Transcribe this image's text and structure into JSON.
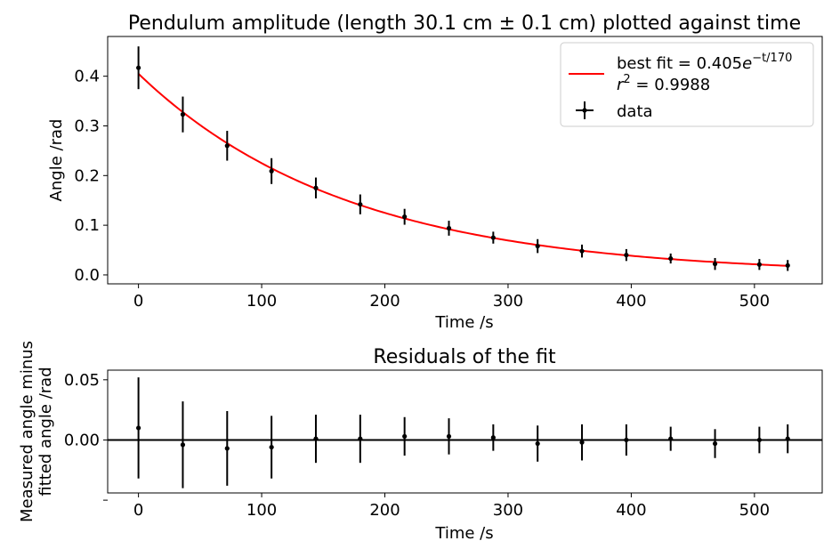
{
  "colors": {
    "fit": "#ff0000",
    "data": "#000000",
    "axes": "#000000",
    "background": "#ffffff",
    "legend_border": "#cccccc"
  },
  "chart_data": [
    {
      "type": "scatter",
      "title": "Pendulum amplitude (length 30.1 cm ± 0.1 cm) plotted against time",
      "xlabel": "Time /s",
      "ylabel": "Angle /rad",
      "xlim": [
        -25,
        555
      ],
      "ylim": [
        -0.018,
        0.48
      ],
      "xticks": [
        0,
        100,
        200,
        300,
        400,
        500
      ],
      "yticks": [
        0.0,
        0.1,
        0.2,
        0.3,
        0.4
      ],
      "grid": false,
      "legend_position": "top-right",
      "legend": {
        "fit_label_prefix": "best fit = 0.405",
        "fit_label_base": "e",
        "fit_label_exp": "−t/170",
        "r2_label": "r",
        "r2_exp": "2",
        "r2_value": " = 0.9988",
        "data_label": "data"
      },
      "series": [
        {
          "kind": "errorbar",
          "x": [
            0,
            36,
            72,
            108,
            144,
            180,
            216,
            252,
            288,
            324,
            360,
            396,
            432,
            468,
            504,
            527
          ],
          "y": [
            0.417,
            0.323,
            0.26,
            0.209,
            0.175,
            0.142,
            0.117,
            0.094,
            0.075,
            0.058,
            0.048,
            0.04,
            0.033,
            0.022,
            0.021,
            0.019
          ],
          "yerr": [
            0.043,
            0.036,
            0.03,
            0.026,
            0.021,
            0.02,
            0.016,
            0.015,
            0.012,
            0.014,
            0.013,
            0.012,
            0.01,
            0.012,
            0.011,
            0.011
          ]
        },
        {
          "kind": "fit",
          "amplitude": 0.405,
          "tau": 170,
          "x_range": [
            0,
            527
          ]
        }
      ]
    },
    {
      "type": "scatter",
      "title": "Residuals of the fit",
      "xlabel": "Time /s",
      "ylabel_line1": "Measured angle minus",
      "ylabel_line2": "fitted angle /rad",
      "xlim": [
        -25,
        555
      ],
      "ylim": [
        -0.044,
        0.058
      ],
      "xticks": [
        0,
        100,
        200,
        300,
        400,
        500
      ],
      "yticks": [
        -0.05,
        0.0,
        0.05
      ],
      "ytick_labels": [
        "",
        "0.00",
        "0.05"
      ],
      "grid": false,
      "zero_line": 0,
      "series": [
        {
          "kind": "errorbar",
          "x": [
            0,
            36,
            72,
            108,
            144,
            180,
            216,
            252,
            288,
            324,
            360,
            396,
            432,
            468,
            504,
            527
          ],
          "y": [
            0.01,
            -0.004,
            -0.007,
            -0.006,
            0.001,
            0.001,
            0.003,
            0.003,
            0.002,
            -0.003,
            -0.002,
            0.0,
            0.001,
            -0.003,
            0.0,
            0.001
          ],
          "yerr": [
            0.042,
            0.036,
            0.031,
            0.026,
            0.02,
            0.02,
            0.016,
            0.015,
            0.011,
            0.015,
            0.015,
            0.013,
            0.01,
            0.012,
            0.011,
            0.012
          ]
        }
      ]
    }
  ]
}
